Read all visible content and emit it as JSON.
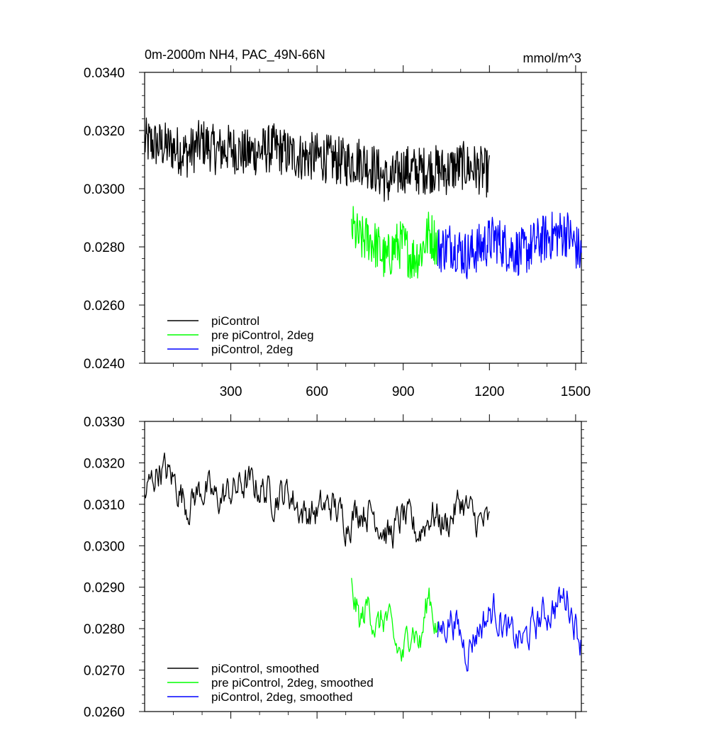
{
  "chart_data": [
    {
      "type": "line",
      "title": "0m-2000m NH4, PAC_49N-66N",
      "units": "mmol/m^3",
      "xlabel": "",
      "ylabel": "",
      "xlim": [
        0,
        1520
      ],
      "ylim": [
        0.024,
        0.034
      ],
      "yticks": [
        0.024,
        0.026,
        0.028,
        0.03,
        0.032,
        0.034
      ],
      "ytick_labels": [
        "0.0240",
        "0.0260",
        "0.0280",
        "0.0300",
        "0.0320",
        "0.0340"
      ],
      "xticks": [
        300,
        600,
        900,
        1200,
        1500
      ],
      "xtick_labels": [
        "300",
        "600",
        "900",
        "1200",
        "1500"
      ],
      "legend": [
        "piControl",
        "pre piControl, 2deg",
        "piControl, 2deg"
      ],
      "series": [
        {
          "name": "piControl",
          "color": "#000000",
          "x": [
            0,
            50,
            100,
            150,
            200,
            250,
            300,
            350,
            400,
            450,
            500,
            550,
            600,
            650,
            700,
            750,
            800,
            850,
            900,
            950,
            1000,
            1050,
            1100,
            1150,
            1200
          ],
          "values": [
            0.0316,
            0.0315,
            0.0314,
            0.0312,
            0.0316,
            0.0313,
            0.0314,
            0.0312,
            0.0313,
            0.0314,
            0.0312,
            0.0311,
            0.0311,
            0.031,
            0.0309,
            0.031,
            0.0307,
            0.0302,
            0.0307,
            0.0306,
            0.0307,
            0.0306,
            0.0308,
            0.0307,
            0.0305
          ]
        },
        {
          "name": "pre piControl, 2deg",
          "color": "#00ff00",
          "x": [
            720,
            750,
            780,
            810,
            840,
            870,
            900,
            930,
            960,
            990,
            1020
          ],
          "values": [
            0.0287,
            0.0282,
            0.0283,
            0.028,
            0.0275,
            0.028,
            0.0281,
            0.0276,
            0.0278,
            0.0285,
            0.0281
          ]
        },
        {
          "name": "piControl, 2deg",
          "color": "#0000ff",
          "x": [
            1020,
            1070,
            1120,
            1170,
            1220,
            1270,
            1320,
            1370,
            1420,
            1470,
            1520
          ],
          "values": [
            0.0279,
            0.0281,
            0.0277,
            0.028,
            0.0283,
            0.0279,
            0.0278,
            0.0282,
            0.0284,
            0.0285,
            0.0277
          ]
        }
      ]
    },
    {
      "type": "line",
      "title": "",
      "xlabel": "",
      "ylabel": "",
      "xlim": [
        0,
        1520
      ],
      "ylim": [
        0.026,
        0.033
      ],
      "yticks": [
        0.026,
        0.027,
        0.028,
        0.029,
        0.03,
        0.031,
        0.032,
        0.033
      ],
      "ytick_labels": [
        "0.0260",
        "0.0270",
        "0.0280",
        "0.0290",
        "0.0300",
        "0.0310",
        "0.0320",
        "0.0330"
      ],
      "xticks": [
        300,
        600,
        900,
        1200,
        1500
      ],
      "xtick_labels": [],
      "legend": [
        "piControl, smoothed",
        "pre piControl, 2deg, smoothed",
        "piControl, 2deg, smoothed"
      ],
      "series": [
        {
          "name": "piControl, smoothed",
          "color": "#000000",
          "x": [
            0,
            50,
            100,
            150,
            200,
            250,
            300,
            350,
            400,
            450,
            500,
            550,
            600,
            650,
            700,
            750,
            800,
            850,
            900,
            950,
            1000,
            1050,
            1100,
            1150,
            1200
          ],
          "values": [
            0.0312,
            0.0319,
            0.0316,
            0.031,
            0.0314,
            0.0311,
            0.0313,
            0.0315,
            0.0314,
            0.0312,
            0.0313,
            0.0308,
            0.0308,
            0.031,
            0.0306,
            0.0309,
            0.0308,
            0.0302,
            0.0307,
            0.0303,
            0.0308,
            0.0305,
            0.0311,
            0.0306,
            0.0305
          ]
        },
        {
          "name": "pre piControl, 2deg, smoothed",
          "color": "#00ff00",
          "x": [
            720,
            750,
            780,
            810,
            840,
            870,
            900,
            930,
            960,
            990,
            1020
          ],
          "values": [
            0.029,
            0.0281,
            0.0286,
            0.028,
            0.0283,
            0.0276,
            0.0273,
            0.0282,
            0.0276,
            0.0289,
            0.0279
          ]
        },
        {
          "name": "piControl, 2deg, smoothed",
          "color": "#0000ff",
          "x": [
            1020,
            1070,
            1120,
            1170,
            1220,
            1270,
            1320,
            1370,
            1420,
            1470,
            1520
          ],
          "values": [
            0.0279,
            0.0283,
            0.0275,
            0.0281,
            0.0285,
            0.0278,
            0.0277,
            0.0282,
            0.0285,
            0.0288,
            0.0277
          ]
        }
      ]
    }
  ]
}
